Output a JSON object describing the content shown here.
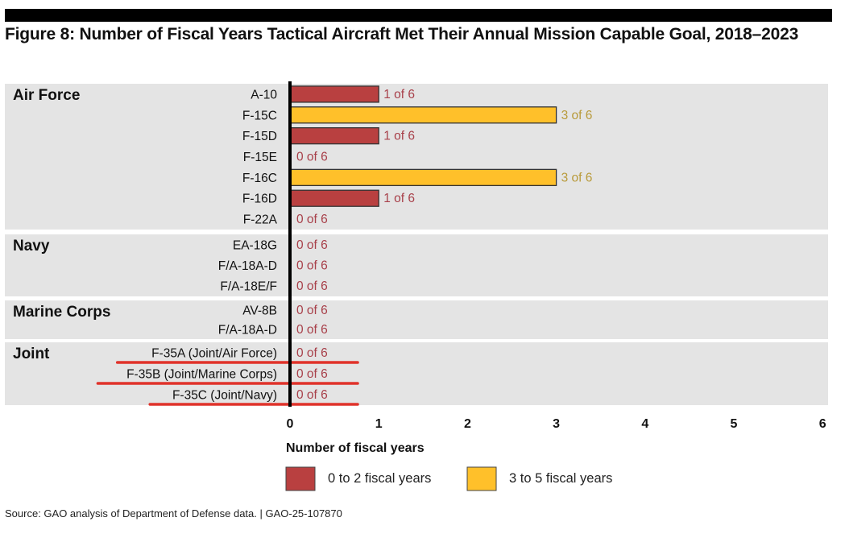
{
  "figure": {
    "title": "Figure 8: Number of Fiscal Years Tactical Aircraft Met Their Annual Mission Capable Goal, 2018–2023",
    "source": "Source: GAO analysis of Department of Defense data.  |  GAO-25-107870"
  },
  "chart_data": {
    "type": "bar",
    "orientation": "horizontal",
    "title": "Figure 8: Number of Fiscal Years Tactical Aircraft Met Their Annual Mission Capable Goal, 2018–2023",
    "xlabel": "Number of fiscal years",
    "ylabel": "",
    "xlim": [
      0,
      6
    ],
    "x_ticks": [
      "0",
      "1",
      "2",
      "3",
      "4",
      "5",
      "6"
    ],
    "grid": false,
    "legend": {
      "placement": "bottom",
      "entries": [
        {
          "label": "0 to 2 fiscal years",
          "color": "#b94040"
        },
        {
          "label": "3 to 5 fiscal years",
          "color": "#ffc02a"
        }
      ]
    },
    "colors": {
      "low": "#b94040",
      "high": "#ffc02a",
      "low_label": "#a8404a",
      "high_label": "#b89a3a",
      "annotation": "#e0322a"
    },
    "groups": [
      {
        "name": "Air Force",
        "items": [
          {
            "label": "A-10",
            "value": 1,
            "data_label": "1 of 6"
          },
          {
            "label": "F-15C",
            "value": 3,
            "data_label": "3 of 6"
          },
          {
            "label": "F-15D",
            "value": 1,
            "data_label": "1 of 6"
          },
          {
            "label": "F-15E",
            "value": 0,
            "data_label": "0 of 6"
          },
          {
            "label": "F-16C",
            "value": 3,
            "data_label": "3 of 6"
          },
          {
            "label": "F-16D",
            "value": 1,
            "data_label": "1 of 6"
          },
          {
            "label": "F-22A",
            "value": 0,
            "data_label": "0 of 6"
          }
        ]
      },
      {
        "name": "Navy",
        "items": [
          {
            "label": "EA-18G",
            "value": 0,
            "data_label": "0 of 6"
          },
          {
            "label": "F/A-18A-D",
            "value": 0,
            "data_label": "0 of 6"
          },
          {
            "label": "F/A-18E/F",
            "value": 0,
            "data_label": "0 of 6"
          }
        ]
      },
      {
        "name": "Marine Corps",
        "items": [
          {
            "label": "AV-8B",
            "value": 0,
            "data_label": "0 of 6"
          },
          {
            "label": "F/A-18A-D",
            "value": 0,
            "data_label": "0 of 6"
          }
        ]
      },
      {
        "name": "Joint",
        "items": [
          {
            "label": "F-35A (Joint/Air Force)",
            "value": 0,
            "data_label": "0 of 6",
            "underlined": true
          },
          {
            "label": "F-35B (Joint/Marine Corps)",
            "value": 0,
            "data_label": "0 of 6",
            "underlined": true
          },
          {
            "label": "F-35C (Joint/Navy)",
            "value": 0,
            "data_label": "0 of 6",
            "underlined": true
          }
        ]
      }
    ]
  }
}
